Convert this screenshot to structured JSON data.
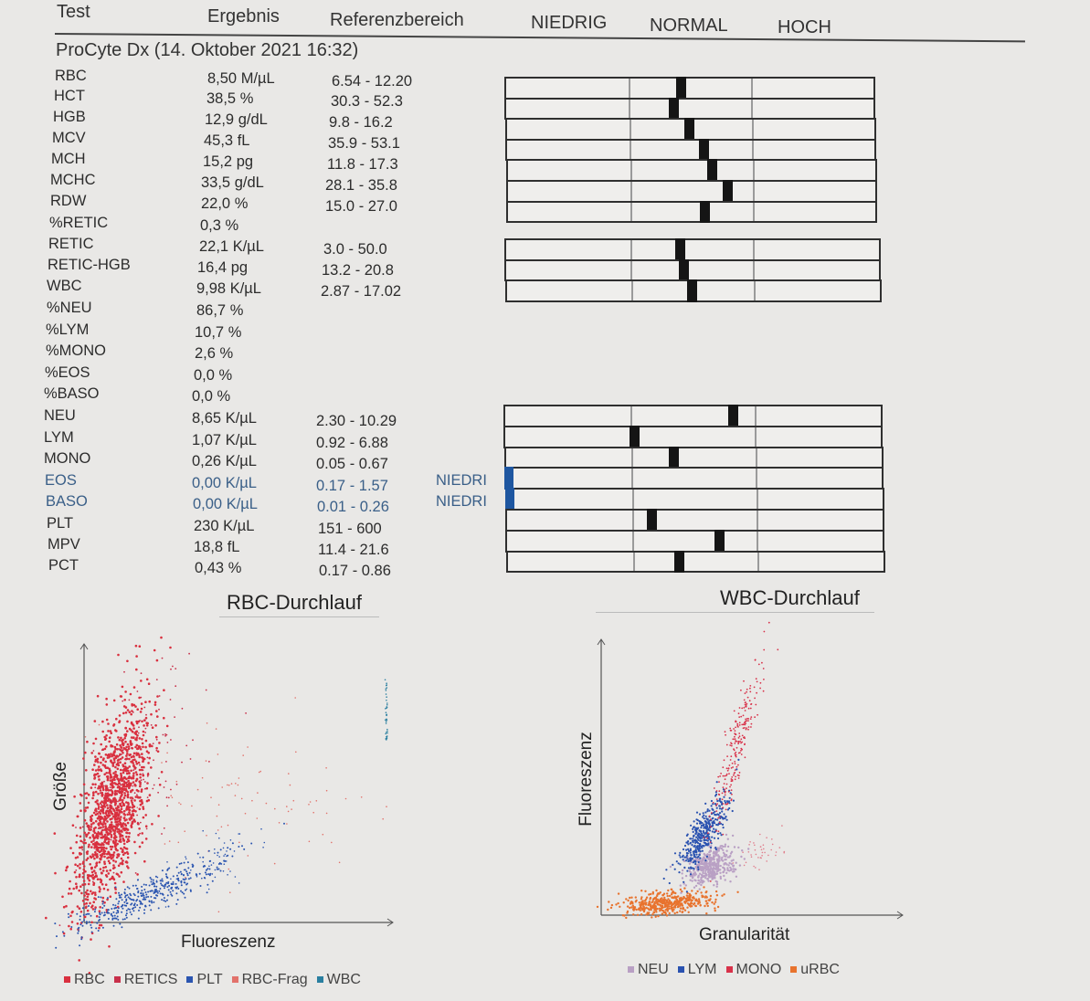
{
  "header": {
    "test": "Test",
    "result": "Ergebnis",
    "reference": "Referenzbereich",
    "low": "NIEDRIG",
    "normal": "NORMAL",
    "high": "HOCH"
  },
  "device": "ProCyte Dx (14. Oktober 2021 16:32)",
  "rows": [
    {
      "name": "RBC",
      "value": "8,50 M/µL",
      "ref": "6.54 - 12.20",
      "level": 0.47
    },
    {
      "name": "HCT",
      "value": "38,5 %",
      "ref": "30.3 - 52.3",
      "level": 0.45
    },
    {
      "name": "HGB",
      "value": "12,9 g/dL",
      "ref": "9.8 - 16.2",
      "level": 0.49
    },
    {
      "name": "MCV",
      "value": "45,3 fL",
      "ref": "35.9 - 53.1",
      "level": 0.53
    },
    {
      "name": "MCH",
      "value": "15,2 pg",
      "ref": "11.8 - 17.3",
      "level": 0.55
    },
    {
      "name": "MCHC",
      "value": "33,5 g/dL",
      "ref": "28.1 - 35.8",
      "level": 0.59
    },
    {
      "name": "RDW",
      "value": "22,0 %",
      "ref": "15.0 - 27.0",
      "level": 0.53
    },
    {
      "name": "%RETIC",
      "value": "0,3 %",
      "ref": ""
    },
    {
      "name": "RETIC",
      "value": "22,1 K/µL",
      "ref": "3.0 - 50.0",
      "level": 0.46
    },
    {
      "name": "RETIC-HGB",
      "value": "16,4 pg",
      "ref": "13.2 - 20.8",
      "level": 0.47
    },
    {
      "name": "WBC",
      "value": "9,98 K/µL",
      "ref": "2.87 - 17.02",
      "level": 0.49
    },
    {
      "name": "%NEU",
      "value": "86,7 %",
      "ref": ""
    },
    {
      "name": "%LYM",
      "value": "10,7 %",
      "ref": ""
    },
    {
      "name": "%MONO",
      "value": "2,6 %",
      "ref": ""
    },
    {
      "name": "%EOS",
      "value": "0,0 %",
      "ref": ""
    },
    {
      "name": "%BASO",
      "value": "0,0 %",
      "ref": ""
    },
    {
      "name": "NEU",
      "value": "8,65 K/µL",
      "ref": "2.30 - 10.29",
      "level": 0.6
    },
    {
      "name": "LYM",
      "value": "1,07 K/µL",
      "ref": "0.92 - 6.88",
      "level": 0.34
    },
    {
      "name": "MONO",
      "value": "0,26 K/µL",
      "ref": "0.05 - 0.67",
      "level": 0.44
    },
    {
      "name": "EOS",
      "value": "0,00 K/µL",
      "ref": "0.17 - 1.57",
      "flag": "NIEDRI",
      "level": 0.0,
      "low": true
    },
    {
      "name": "BASO",
      "value": "0,00 K/µL",
      "ref": "0.01 - 0.26",
      "flag": "NIEDRI",
      "level": 0.0,
      "low": true
    },
    {
      "name": "PLT",
      "value": "230 K/µL",
      "ref": "151 - 600",
      "level": 0.38
    },
    {
      "name": "MPV",
      "value": "18,8 fL",
      "ref": "11.4 - 21.6",
      "level": 0.56
    },
    {
      "name": "PCT",
      "value": "0,43 %",
      "ref": "0.17 - 0.86",
      "level": 0.45
    }
  ],
  "rbc_chart": {
    "title": "RBC-Durchlauf",
    "xlabel": "Fluoreszenz",
    "ylabel": "Größe",
    "legend": [
      {
        "label": "RBC",
        "color": "#d9303f"
      },
      {
        "label": "RETICS",
        "color": "#c8304a"
      },
      {
        "label": "PLT",
        "color": "#2b55b0"
      },
      {
        "label": "RBC-Frag",
        "color": "#e2726b"
      },
      {
        "label": "WBC",
        "color": "#2a7fa0"
      }
    ]
  },
  "wbc_chart": {
    "title": "WBC-Durchlauf",
    "xlabel": "Granularität",
    "ylabel": "Fluoreszenz",
    "legend": [
      {
        "label": "NEU",
        "color": "#b9a0c4"
      },
      {
        "label": "LYM",
        "color": "#2a52b0"
      },
      {
        "label": "MONO",
        "color": "#d8324a"
      },
      {
        "label": "uRBC",
        "color": "#e8732e"
      }
    ]
  }
}
